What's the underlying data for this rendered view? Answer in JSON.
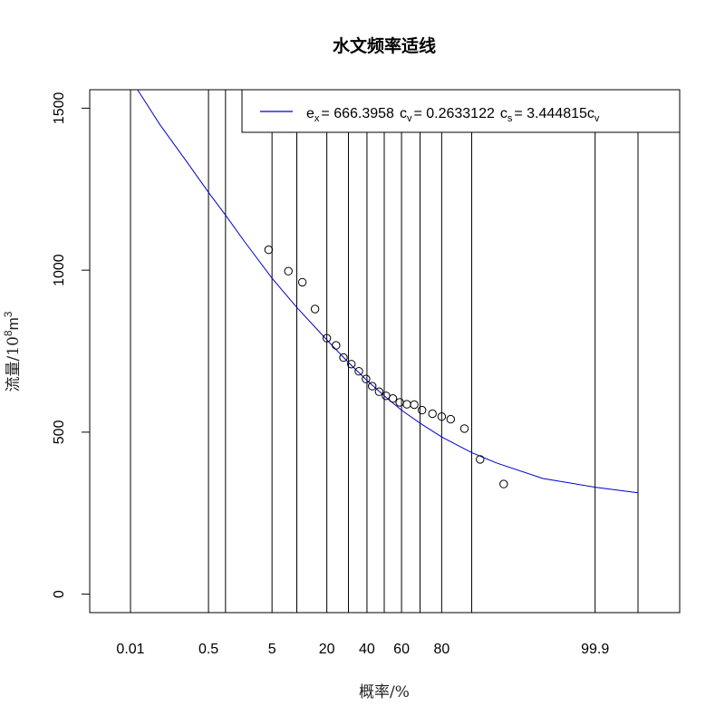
{
  "chart_data": {
    "type": "scatter",
    "title": "水文频率适线",
    "xlabel": "概率/%",
    "ylabel_text": "流量/10",
    "ylabel_exp": "8",
    "ylabel_unit": "m",
    "ylabel_unit_exp": "3",
    "x_scale": "normal-probability",
    "x_ticks": [
      {
        "p": 0.01,
        "label": "0.01"
      },
      {
        "p": 0.5,
        "label": "0.5"
      },
      {
        "p": 1,
        "label": ""
      },
      {
        "p": 5,
        "label": "5"
      },
      {
        "p": 10,
        "label": ""
      },
      {
        "p": 20,
        "label": "20"
      },
      {
        "p": 30,
        "label": ""
      },
      {
        "p": 40,
        "label": "40"
      },
      {
        "p": 50,
        "label": ""
      },
      {
        "p": 60,
        "label": "60"
      },
      {
        "p": 70,
        "label": ""
      },
      {
        "p": 80,
        "label": "80"
      },
      {
        "p": 90,
        "label": ""
      },
      {
        "p": 99.9,
        "label": "99.9"
      },
      {
        "p": 99.99,
        "label": ""
      }
    ],
    "y_ticks": [
      0,
      500,
      1000,
      1500
    ],
    "ylim": [
      -57,
      1557
    ],
    "grid": "vertical lines at probability ticks",
    "legend": {
      "placement": "top-right",
      "ex_label": "e",
      "ex_sub": "x",
      "ex_value": "= 666.3958",
      "cv_label": "c",
      "cv_sub": "v",
      "cv_value": "= 0.2633122",
      "cs_label": "c",
      "cs_sub": "s",
      "cs_value": "= 3.444815c",
      "cs_tail_sub": "v"
    },
    "series": [
      {
        "kind": "line",
        "color": "#0000cc",
        "points": [
          {
            "p": 0.015,
            "y": 1557
          },
          {
            "p": 0.05,
            "y": 1450
          },
          {
            "p": 0.2,
            "y": 1330
          },
          {
            "p": 0.5,
            "y": 1240
          },
          {
            "p": 1,
            "y": 1170
          },
          {
            "p": 2,
            "y": 1090
          },
          {
            "p": 5,
            "y": 975
          },
          {
            "p": 10,
            "y": 885
          },
          {
            "p": 20,
            "y": 785
          },
          {
            "p": 30,
            "y": 715
          },
          {
            "p": 40,
            "y": 660
          },
          {
            "p": 50,
            "y": 612
          },
          {
            "p": 60,
            "y": 568
          },
          {
            "p": 70,
            "y": 528
          },
          {
            "p": 80,
            "y": 485
          },
          {
            "p": 90,
            "y": 437
          },
          {
            "p": 95,
            "y": 405
          },
          {
            "p": 99,
            "y": 357
          },
          {
            "p": 99.9,
            "y": 330
          },
          {
            "p": 99.99,
            "y": 313
          }
        ]
      },
      {
        "kind": "points",
        "color": "#000000",
        "points": [
          {
            "p": 4.5,
            "y": 1063
          },
          {
            "p": 8,
            "y": 997
          },
          {
            "p": 11.5,
            "y": 963
          },
          {
            "p": 15.5,
            "y": 880
          },
          {
            "p": 20,
            "y": 790
          },
          {
            "p": 24,
            "y": 768
          },
          {
            "p": 27.5,
            "y": 730
          },
          {
            "p": 31.5,
            "y": 710
          },
          {
            "p": 35.5,
            "y": 688
          },
          {
            "p": 39.5,
            "y": 664
          },
          {
            "p": 43,
            "y": 642
          },
          {
            "p": 47,
            "y": 625
          },
          {
            "p": 51,
            "y": 612
          },
          {
            "p": 55,
            "y": 604
          },
          {
            "p": 59,
            "y": 592
          },
          {
            "p": 63,
            "y": 586
          },
          {
            "p": 67,
            "y": 585
          },
          {
            "p": 71,
            "y": 568
          },
          {
            "p": 76,
            "y": 557
          },
          {
            "p": 80,
            "y": 548
          },
          {
            "p": 83.5,
            "y": 540
          },
          {
            "p": 88,
            "y": 511
          },
          {
            "p": 92,
            "y": 416
          },
          {
            "p": 96,
            "y": 340
          }
        ]
      }
    ]
  }
}
